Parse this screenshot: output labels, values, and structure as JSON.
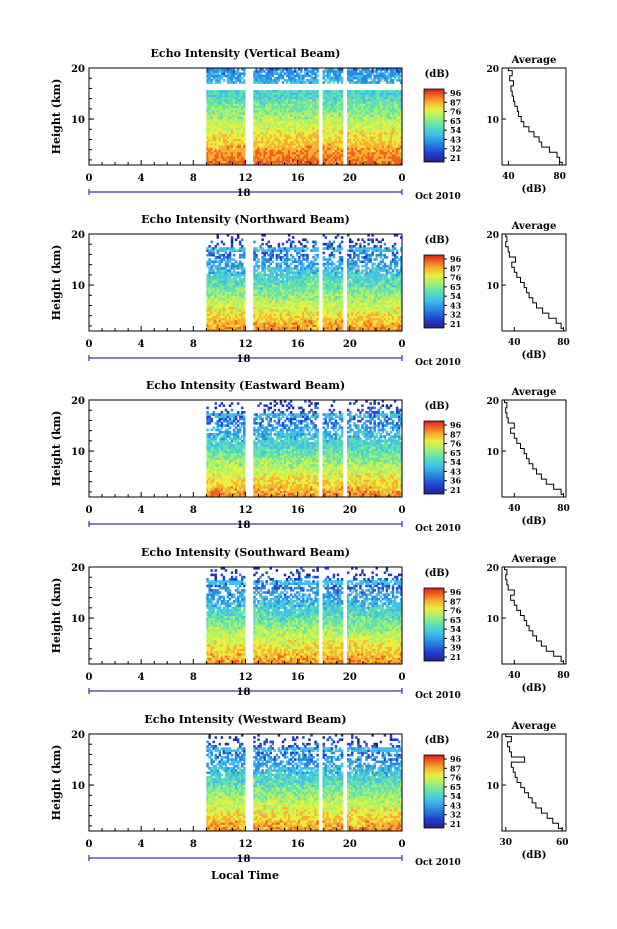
{
  "figure": {
    "x_label": "Local Time",
    "date_label": "Oct 2010",
    "day_label": "18",
    "height_label": "Height (km)",
    "avg_title": "Average",
    "avg_unit": "(dB)",
    "colorbar_unit": "(dB)"
  },
  "colors": {
    "scale": [
      "#22228a",
      "#2040d0",
      "#2a8ae0",
      "#40c0e8",
      "#60e0b0",
      "#a8f070",
      "#e8f040",
      "#f8b030",
      "#f06020",
      "#d02020"
    ]
  },
  "chart_data": [
    {
      "type": "heatmap",
      "title": "Echo Intensity (Vertical Beam)",
      "x_ticks": [
        "0",
        "4",
        "8",
        "12",
        "16",
        "20",
        "0"
      ],
      "y_ticks": [
        "20",
        "10"
      ],
      "xlim": [
        0,
        24
      ],
      "ylim": [
        1,
        20
      ],
      "x_unit": "hour",
      "y_unit": "km",
      "data_start_hour": 9,
      "data_end_hour": 24,
      "gaps_hours": [
        [
          12.0,
          12.6
        ],
        [
          17.6,
          17.9
        ],
        [
          19.4,
          19.8
        ]
      ],
      "colorbar_ticks": [
        "96",
        "87",
        "76",
        "65",
        "54",
        "43",
        "32",
        "21"
      ],
      "avg_profile": {
        "x_ticks": [
          "40",
          "80"
        ],
        "xlim": [
          35,
          85
        ],
        "heights": [
          1,
          2,
          3,
          4,
          5,
          6,
          7,
          8,
          9,
          10,
          11,
          12,
          13,
          14,
          15,
          16,
          17,
          18,
          19,
          20
        ],
        "values": [
          82,
          80,
          78,
          72,
          66,
          64,
          60,
          56,
          52,
          50,
          48,
          47,
          45,
          44,
          43,
          42,
          44,
          41,
          43,
          40
        ]
      }
    },
    {
      "type": "heatmap",
      "title": "Echo Intensity (Northward Beam)",
      "x_ticks": [
        "0",
        "4",
        "8",
        "12",
        "16",
        "20",
        "0"
      ],
      "y_ticks": [
        "20",
        "10"
      ],
      "xlim": [
        0,
        24
      ],
      "ylim": [
        1,
        20
      ],
      "x_unit": "hour",
      "y_unit": "km",
      "data_start_hour": 9,
      "data_end_hour": 24,
      "gaps_hours": [
        [
          12.0,
          12.6
        ],
        [
          17.6,
          17.9
        ],
        [
          19.4,
          19.8
        ]
      ],
      "colorbar_ticks": [
        "96",
        "87",
        "76",
        "65",
        "54",
        "43",
        "32",
        "21"
      ],
      "avg_profile": {
        "x_ticks": [
          "40",
          "80"
        ],
        "xlim": [
          30,
          82
        ],
        "heights": [
          1,
          2,
          3,
          4,
          5,
          6,
          7,
          8,
          9,
          10,
          11,
          12,
          13,
          14,
          15,
          16,
          17,
          18,
          19,
          20
        ],
        "values": [
          80,
          78,
          74,
          68,
          63,
          58,
          55,
          52,
          50,
          48,
          45,
          42,
          40,
          38,
          41,
          36,
          35,
          33,
          34,
          33
        ]
      }
    },
    {
      "type": "heatmap",
      "title": "Echo Intensity (Eastward Beam)",
      "x_ticks": [
        "0",
        "4",
        "8",
        "12",
        "16",
        "20",
        "0"
      ],
      "y_ticks": [
        "20",
        "10"
      ],
      "xlim": [
        0,
        24
      ],
      "ylim": [
        1,
        20
      ],
      "x_unit": "hour",
      "y_unit": "km",
      "data_start_hour": 9,
      "data_end_hour": 24,
      "gaps_hours": [
        [
          12.0,
          12.6
        ],
        [
          17.6,
          17.9
        ],
        [
          19.4,
          19.8
        ]
      ],
      "colorbar_ticks": [
        "96",
        "87",
        "76",
        "65",
        "54",
        "43",
        "36",
        "21"
      ],
      "avg_profile": {
        "x_ticks": [
          "40",
          "80"
        ],
        "xlim": [
          30,
          82
        ],
        "heights": [
          1,
          2,
          3,
          4,
          5,
          6,
          7,
          8,
          9,
          10,
          11,
          12,
          13,
          14,
          15,
          16,
          17,
          18,
          19,
          20
        ],
        "values": [
          80,
          78,
          72,
          66,
          62,
          58,
          55,
          52,
          50,
          48,
          45,
          42,
          40,
          37,
          40,
          35,
          34,
          33,
          34,
          32
        ]
      }
    },
    {
      "type": "heatmap",
      "title": "Echo Intensity (Southward Beam)",
      "x_ticks": [
        "0",
        "4",
        "8",
        "12",
        "16",
        "20",
        "0"
      ],
      "y_ticks": [
        "20",
        "10"
      ],
      "xlim": [
        0,
        24
      ],
      "ylim": [
        1,
        20
      ],
      "x_unit": "hour",
      "y_unit": "km",
      "data_start_hour": 9,
      "data_end_hour": 24,
      "gaps_hours": [
        [
          12.0,
          12.6
        ],
        [
          17.6,
          17.9
        ],
        [
          19.4,
          19.8
        ]
      ],
      "colorbar_ticks": [
        "96",
        "87",
        "76",
        "65",
        "54",
        "43",
        "39",
        "21"
      ],
      "avg_profile": {
        "x_ticks": [
          "40",
          "80"
        ],
        "xlim": [
          30,
          82
        ],
        "heights": [
          1,
          2,
          3,
          4,
          5,
          6,
          7,
          8,
          9,
          10,
          11,
          12,
          13,
          14,
          15,
          16,
          17,
          18,
          19,
          20
        ],
        "values": [
          80,
          78,
          72,
          66,
          62,
          58,
          55,
          52,
          50,
          48,
          45,
          42,
          40,
          37,
          40,
          35,
          34,
          33,
          34,
          32
        ]
      }
    },
    {
      "type": "heatmap",
      "title": "Echo Intensity (Westward Beam)",
      "x_ticks": [
        "0",
        "4",
        "8",
        "12",
        "16",
        "20",
        "0"
      ],
      "y_ticks": [
        "20",
        "10"
      ],
      "xlim": [
        0,
        24
      ],
      "ylim": [
        1,
        20
      ],
      "x_unit": "hour",
      "y_unit": "km",
      "data_start_hour": 9,
      "data_end_hour": 24,
      "gaps_hours": [
        [
          12.0,
          12.6
        ],
        [
          17.6,
          17.9
        ],
        [
          19.4,
          19.8
        ]
      ],
      "colorbar_ticks": [
        "96",
        "87",
        "76",
        "65",
        "54",
        "43",
        "32",
        "21"
      ],
      "avg_profile": {
        "x_ticks": [
          "30",
          "60"
        ],
        "xlim": [
          28,
          62
        ],
        "heights": [
          1,
          2,
          3,
          4,
          5,
          6,
          7,
          8,
          9,
          10,
          11,
          12,
          13,
          14,
          15,
          16,
          17,
          18,
          19,
          20
        ],
        "values": [
          60,
          58,
          55,
          52,
          49,
          46,
          44,
          42,
          40,
          38,
          36,
          35,
          34,
          33,
          40,
          33,
          32,
          31,
          33,
          30
        ]
      }
    }
  ]
}
